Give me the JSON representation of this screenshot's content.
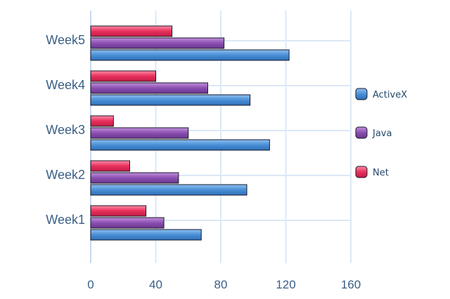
{
  "chart_data": {
    "type": "bar",
    "orientation": "horizontal",
    "categories": [
      "Week1",
      "Week2",
      "Week3",
      "Week4",
      "Week5"
    ],
    "series": [
      {
        "name": "ActiveX",
        "color": "#4a8fd6",
        "values": [
          68,
          96,
          110,
          98,
          122
        ]
      },
      {
        "name": "Java",
        "color": "#8b4fb0",
        "values": [
          45,
          54,
          60,
          72,
          82
        ]
      },
      {
        "name": "Net",
        "color": "#e8305c",
        "values": [
          34,
          24,
          14,
          40,
          50
        ]
      }
    ],
    "xlim": [
      0,
      160
    ],
    "xticks": [
      "0",
      "40",
      "80",
      "120",
      "160"
    ],
    "grid": true,
    "legend_position": "right"
  }
}
